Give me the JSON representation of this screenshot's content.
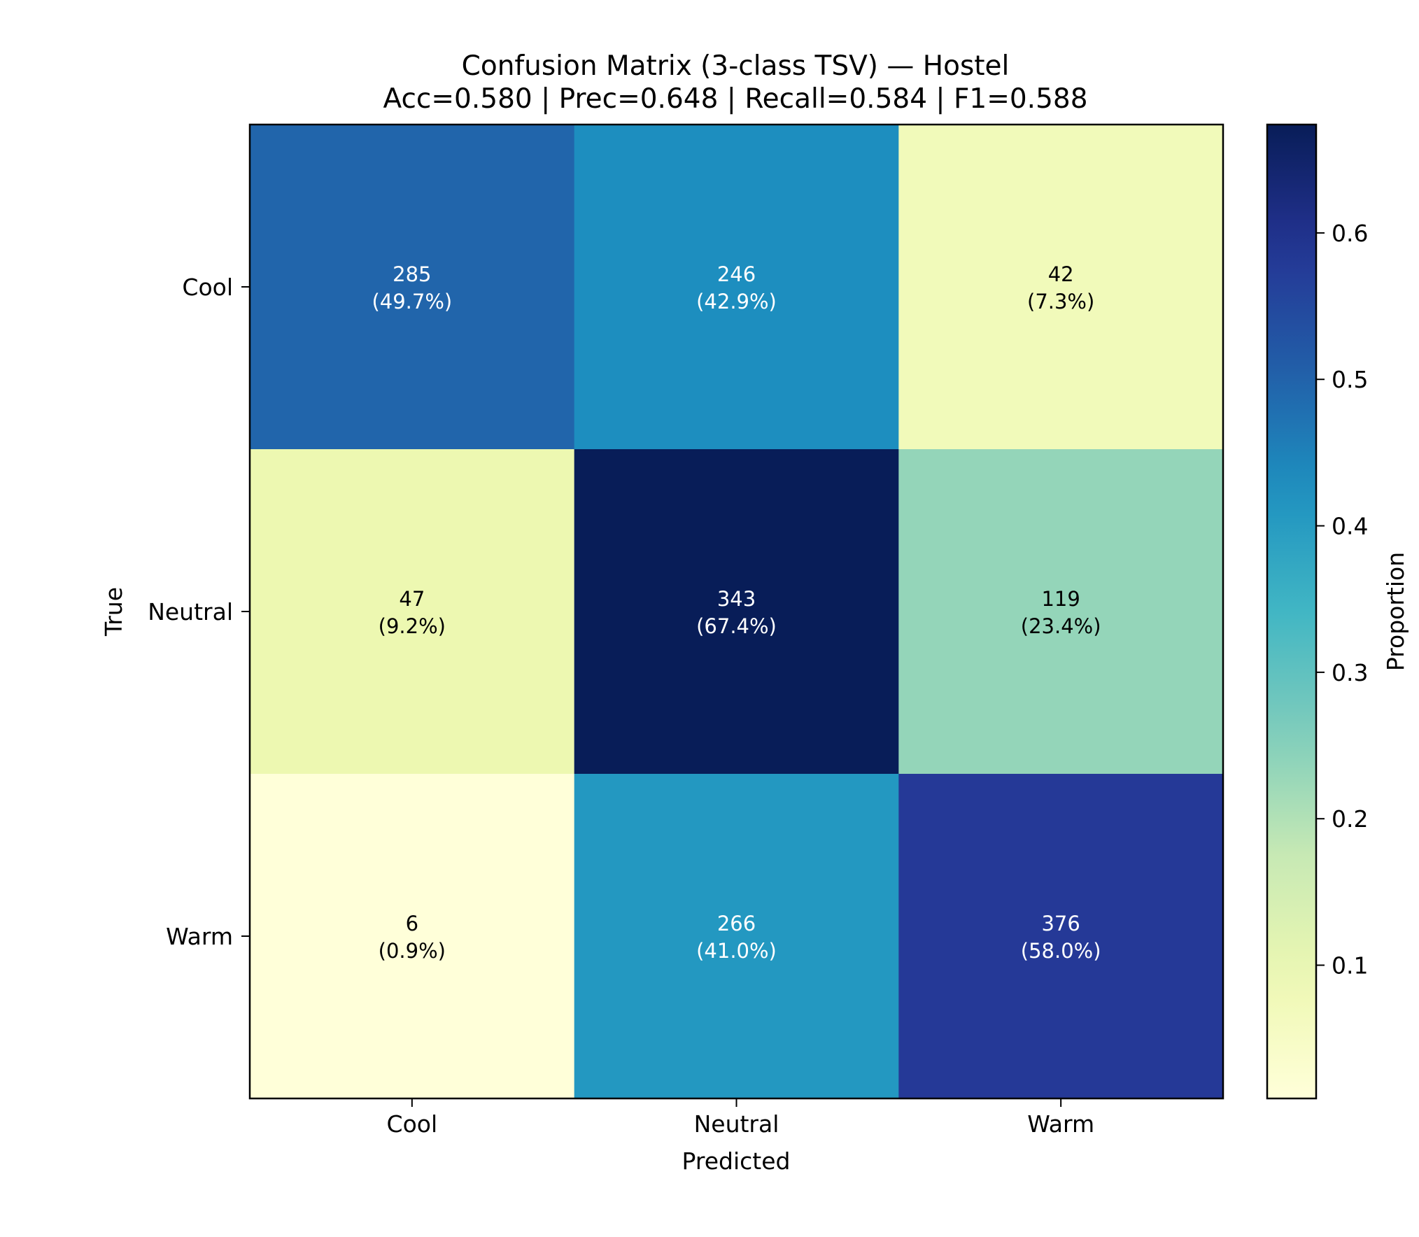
{
  "chart_data": {
    "type": "heatmap",
    "title": "Confusion Matrix (3-class TSV) — Hostel",
    "subtitle": "Acc=0.580 | Prec=0.648 | Recall=0.584 | F1=0.588",
    "xlabel": "Predicted",
    "ylabel": "True",
    "x_categories": [
      "Cool",
      "Neutral",
      "Warm"
    ],
    "y_categories": [
      "Cool",
      "Neutral",
      "Warm"
    ],
    "counts": [
      [
        285,
        246,
        42
      ],
      [
        47,
        343,
        119
      ],
      [
        6,
        266,
        376
      ]
    ],
    "proportions": [
      [
        0.497,
        0.429,
        0.073
      ],
      [
        0.092,
        0.674,
        0.234
      ],
      [
        0.009,
        0.41,
        0.58
      ]
    ],
    "cell_labels": [
      [
        "285\n(49.7%)",
        "246\n(42.9%)",
        "42\n(7.3%)"
      ],
      [
        "47\n(9.2%)",
        "343\n(67.4%)",
        "119\n(23.4%)"
      ],
      [
        "6\n(0.9%)",
        "266\n(41.0%)",
        "376\n(58.0%)"
      ]
    ],
    "colorbar": {
      "label": "Proportion",
      "colormap": "YlGnBu",
      "range": [
        0.009,
        0.674
      ],
      "ticks": [
        0.1,
        0.2,
        0.3,
        0.4,
        0.5,
        0.6
      ],
      "tick_labels": [
        "0.1",
        "0.2",
        "0.3",
        "0.4",
        "0.5",
        "0.6"
      ]
    },
    "grid": false
  }
}
